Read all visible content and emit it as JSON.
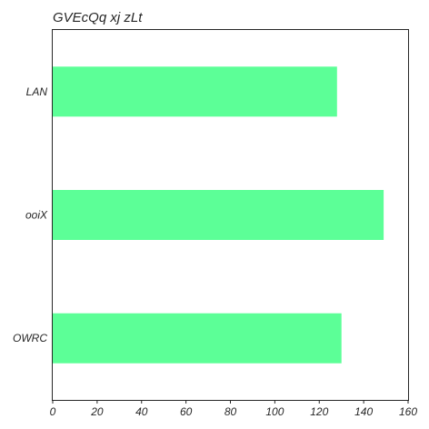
{
  "chart_data": {
    "type": "bar",
    "orientation": "horizontal",
    "title": "GVEcQq xj zLt",
    "xlabel": "",
    "ylabel": "",
    "categories": [
      "LAN",
      "ooiX",
      "OWRC"
    ],
    "values": [
      128,
      149,
      130
    ],
    "xlim": [
      0,
      160
    ],
    "xticks": [
      0,
      20,
      40,
      60,
      80,
      100,
      120,
      140,
      160
    ],
    "grid": false,
    "legend": "none",
    "colors": {
      "bar": "#5cff97",
      "frame": "#262626",
      "text": "#262626"
    }
  }
}
